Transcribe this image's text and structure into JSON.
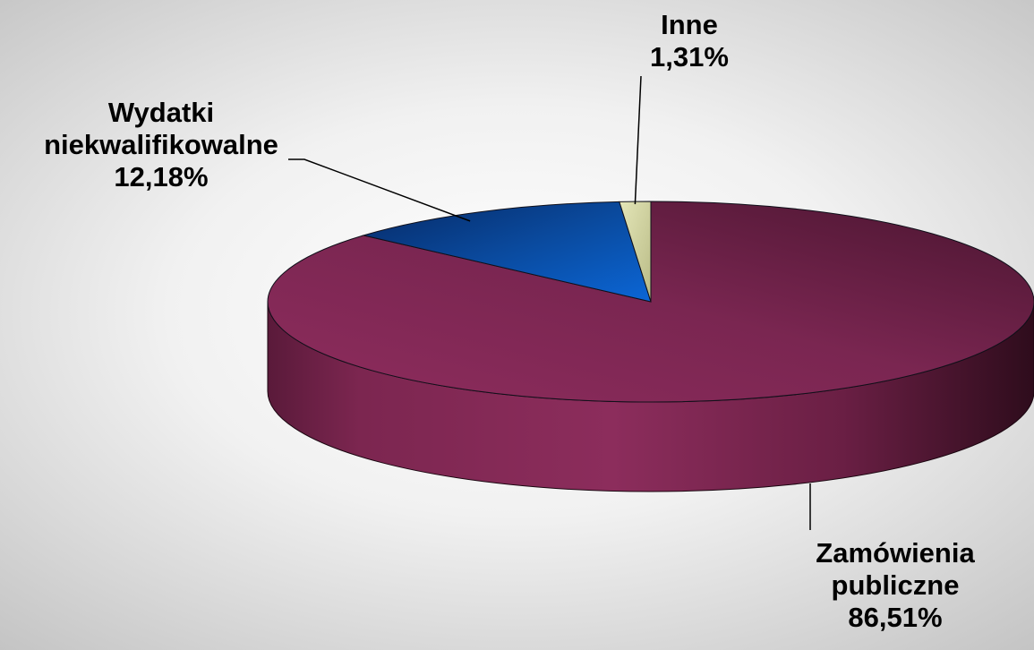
{
  "chart_data": {
    "type": "pie",
    "style": "3d",
    "categories": [
      "Zamówienia publiczne",
      "Wydatki niekwalifikowalne",
      "Inne"
    ],
    "values": [
      86.51,
      12.18,
      1.31
    ],
    "labels": [
      {
        "lines": [
          "Zamówienia",
          "publiczne"
        ],
        "value": "86,51%"
      },
      {
        "lines": [
          "Wydatki",
          "niekwalifikowalne"
        ],
        "value": "12,18%"
      },
      {
        "lines": [
          "Inne"
        ],
        "value": "1,31%"
      }
    ],
    "colors": [
      "#8a2a59",
      "#0a4fb0",
      "#cfd1a0"
    ],
    "legend": "none"
  }
}
